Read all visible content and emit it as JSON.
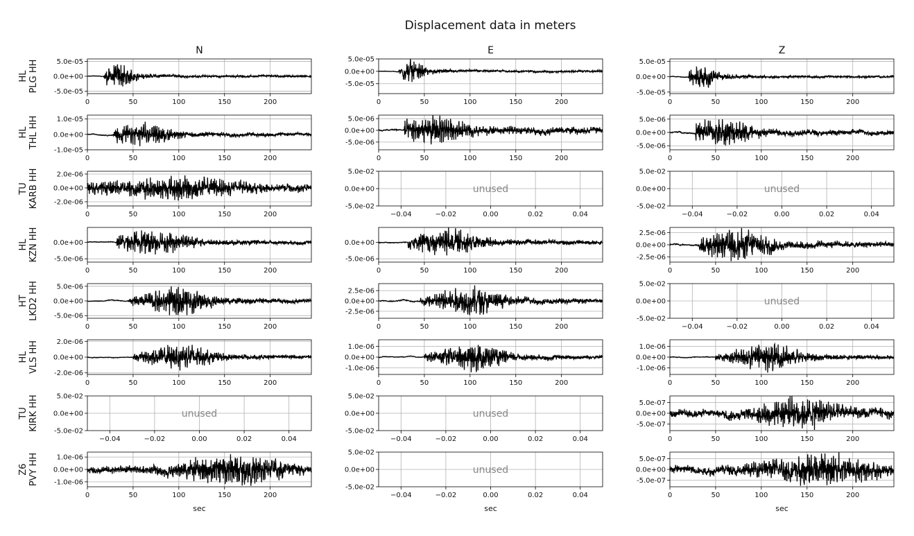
{
  "figure": {
    "title": "Displacement data in meters",
    "xlabel": "sec",
    "components": [
      "N",
      "E",
      "Z"
    ],
    "unused_label": "unused"
  },
  "chart_data": {
    "type": "line",
    "title": "Displacement data in meters",
    "grid": true,
    "x_range_traces": [
      0,
      245
    ],
    "x_ticks_traces": [
      "0",
      "50",
      "100",
      "150",
      "200"
    ],
    "x_ticks_unused": [
      "−0.04",
      "−0.02",
      "0.00",
      "0.02",
      "0.04"
    ],
    "y_ticks_unused": [
      "5.0e-02",
      "0.0e+00",
      "-5.0e-02"
    ],
    "stations": [
      {
        "network": "HL",
        "station": "PLG HH",
        "panels": [
          {
            "component": "N",
            "used": true,
            "ylim": [
              -5.8e-05,
              5.8e-05
            ],
            "yticks": [
              {
                "v": 5e-05,
                "label": "5.0e-05"
              },
              {
                "v": 0,
                "label": "0.0e+00"
              },
              {
                "v": -5e-05,
                "label": "-5.0e-05"
              }
            ],
            "onset": 18,
            "peak_t": 33,
            "peak": 4.8e-05,
            "env_width": 18,
            "level": 3.5e-06
          },
          {
            "component": "E",
            "used": true,
            "ylim": [
              -9e-05,
              5e-05
            ],
            "yticks": [
              {
                "v": 5e-05,
                "label": "5.0e-05"
              },
              {
                "v": 0,
                "label": "0.0e+00"
              },
              {
                "v": -5e-05,
                "label": "-5.0e-05"
              }
            ],
            "onset": 22,
            "peak_t": 34,
            "peak": 5e-05,
            "env_width": 16,
            "level": 4e-06
          },
          {
            "component": "Z",
            "used": true,
            "ylim": [
              -5.5e-05,
              5.8e-05
            ],
            "yticks": [
              {
                "v": 5e-05,
                "label": "5.0e-05"
              },
              {
                "v": 0,
                "label": "0.0e+00"
              },
              {
                "v": -5e-05,
                "label": "-5.0e-05"
              }
            ],
            "onset": 20,
            "peak_t": 34,
            "peak": 4.5e-05,
            "env_width": 18,
            "level": 3.5e-06
          }
        ]
      },
      {
        "network": "HL",
        "station": "THL HH",
        "panels": [
          {
            "component": "N",
            "used": true,
            "ylim": [
              -1e-05,
              1.25e-05
            ],
            "yticks": [
              {
                "v": 1e-05,
                "label": "1.0e-05"
              },
              {
                "v": 0,
                "label": "0.0e+00"
              },
              {
                "v": -1e-05,
                "label": "-1.0e-05"
              }
            ],
            "onset": 28,
            "peak_t": 55,
            "peak": 7.5e-06,
            "env_width": 40,
            "level": 9e-07
          },
          {
            "component": "E",
            "used": true,
            "ylim": [
              -8.3e-06,
              6.5e-06
            ],
            "yticks": [
              {
                "v": 5e-06,
                "label": "5.0e-06"
              },
              {
                "v": 0,
                "label": "0.0e+00"
              },
              {
                "v": -5e-06,
                "label": "-5.0e-06"
              }
            ],
            "onset": 28,
            "peak_t": 55,
            "peak": 5.8e-06,
            "env_width": 45,
            "level": 1.2e-06
          },
          {
            "component": "Z",
            "used": true,
            "ylim": [
              -6.5e-06,
              6.5e-06
            ],
            "yticks": [
              {
                "v": 5e-06,
                "label": "5.0e-06"
              },
              {
                "v": 0,
                "label": "0.0e+00"
              },
              {
                "v": -5e-06,
                "label": "-5.0e-06"
              }
            ],
            "onset": 28,
            "peak_t": 55,
            "peak": 5.5e-06,
            "env_width": 40,
            "level": 8e-07
          }
        ]
      },
      {
        "network": "TU",
        "station": "KARB HH",
        "panels": [
          {
            "component": "N",
            "used": true,
            "ylim": [
              -2.6e-06,
              2.4e-06
            ],
            "yticks": [
              {
                "v": 2e-06,
                "label": "2.0e-06"
              },
              {
                "v": 0,
                "label": "0.0e+00"
              },
              {
                "v": -2e-06,
                "label": "-2.0e-06"
              }
            ],
            "onset": 0,
            "peak_t": 90,
            "peak": 1.5e-06,
            "env_width": 80,
            "level": 4.5e-07
          },
          {
            "component": "E",
            "used": false
          },
          {
            "component": "Z",
            "used": false
          }
        ]
      },
      {
        "network": "HL",
        "station": "KZN HH",
        "panels": [
          {
            "component": "N",
            "used": true,
            "ylim": [
              -6e-06,
              4.5e-06
            ],
            "yticks": [
              {
                "v": 0,
                "label": "0.0e+00"
              },
              {
                "v": -5e-06,
                "label": "-5.0e-06"
              }
            ],
            "onset": 32,
            "peak_t": 70,
            "peak": 4.2e-06,
            "env_width": 45,
            "level": 4e-07
          },
          {
            "component": "E",
            "used": true,
            "ylim": [
              -6e-06,
              4.5e-06
            ],
            "yticks": [
              {
                "v": 0,
                "label": "0.0e+00"
              },
              {
                "v": -5e-06,
                "label": "-5.0e-06"
              }
            ],
            "onset": 32,
            "peak_t": 70,
            "peak": 4.2e-06,
            "env_width": 45,
            "level": 5e-07
          },
          {
            "component": "Z",
            "used": true,
            "ylim": [
              -3.6e-06,
              3.6e-06
            ],
            "yticks": [
              {
                "v": 2.5e-06,
                "label": "2.5e-06"
              },
              {
                "v": 0,
                "label": "0.0e+00"
              },
              {
                "v": -2.5e-06,
                "label": "-2.5e-06"
              }
            ],
            "onset": 32,
            "peak_t": 70,
            "peak": 3.2e-06,
            "env_width": 45,
            "level": 5e-07
          }
        ]
      },
      {
        "network": "HT",
        "station": "LKD2 HH",
        "panels": [
          {
            "component": "N",
            "used": true,
            "ylim": [
              -5.9e-06,
              5.9e-06
            ],
            "yticks": [
              {
                "v": 5e-06,
                "label": "5.0e-06"
              },
              {
                "v": 0,
                "label": "0.0e+00"
              },
              {
                "v": -5e-06,
                "label": "-5.0e-06"
              }
            ],
            "onset": 45,
            "peak_t": 95,
            "peak": 5.2e-06,
            "env_width": 40,
            "level": 5e-07
          },
          {
            "component": "E",
            "used": true,
            "ylim": [
              -4.2e-06,
              4.2e-06
            ],
            "yticks": [
              {
                "v": 2.5e-06,
                "label": "2.5e-06"
              },
              {
                "v": 0,
                "label": "0.0e+00"
              },
              {
                "v": -2.5e-06,
                "label": "-2.5e-06"
              }
            ],
            "onset": 45,
            "peak_t": 95,
            "peak": 3.5e-06,
            "env_width": 40,
            "level": 5e-07
          },
          {
            "component": "Z",
            "used": false
          }
        ]
      },
      {
        "network": "HL",
        "station": "VLS HH",
        "panels": [
          {
            "component": "N",
            "used": true,
            "ylim": [
              -2.2e-06,
              2.2e-06
            ],
            "yticks": [
              {
                "v": 2e-06,
                "label": "2.0e-06"
              },
              {
                "v": 0,
                "label": "0.0e+00"
              },
              {
                "v": -2e-06,
                "label": "-2.0e-06"
              }
            ],
            "onset": 50,
            "peak_t": 100,
            "peak": 1.8e-06,
            "env_width": 40,
            "level": 1.5e-07
          },
          {
            "component": "E",
            "used": true,
            "ylim": [
              -1.6e-06,
              1.6e-06
            ],
            "yticks": [
              {
                "v": 1e-06,
                "label": "1.0e-06"
              },
              {
                "v": 0,
                "label": "0.0e+00"
              },
              {
                "v": -1e-06,
                "label": "-1.0e-06"
              }
            ],
            "onset": 50,
            "peak_t": 100,
            "peak": 1.4e-06,
            "env_width": 40,
            "level": 1.2e-07
          },
          {
            "component": "Z",
            "used": true,
            "ylim": [
              -1.6e-06,
              1.6e-06
            ],
            "yticks": [
              {
                "v": 1e-06,
                "label": "1.0e-06"
              },
              {
                "v": 0,
                "label": "0.0e+00"
              },
              {
                "v": -1e-06,
                "label": "-1.0e-06"
              }
            ],
            "onset": 50,
            "peak_t": 105,
            "peak": 1.4e-06,
            "env_width": 40,
            "level": 1.2e-07
          }
        ]
      },
      {
        "network": "TU",
        "station": "KIRK HH",
        "panels": [
          {
            "component": "N",
            "used": false
          },
          {
            "component": "E",
            "used": false
          },
          {
            "component": "Z",
            "used": true,
            "ylim": [
              -8e-07,
              8e-07
            ],
            "yticks": [
              {
                "v": 5e-07,
                "label": "5.0e-07"
              },
              {
                "v": 0,
                "label": "0.0e+00"
              },
              {
                "v": -5e-07,
                "label": "-5.0e-07"
              }
            ],
            "onset": 0,
            "peak_t": 140,
            "peak": 7e-07,
            "env_width": 50,
            "level": 1.8e-07
          }
        ]
      },
      {
        "network": "Z6",
        "station": "PVY HH",
        "panels": [
          {
            "component": "N",
            "used": true,
            "ylim": [
              -1.4e-06,
              1.4e-06
            ],
            "yticks": [
              {
                "v": 1e-06,
                "label": "1.0e-06"
              },
              {
                "v": 0,
                "label": "0.0e+00"
              },
              {
                "v": -1e-06,
                "label": "-1.0e-06"
              }
            ],
            "onset": 0,
            "peak_t": 160,
            "peak": 1.2e-06,
            "env_width": 60,
            "level": 3e-07
          },
          {
            "component": "E",
            "used": false
          },
          {
            "component": "Z",
            "used": true,
            "ylim": [
              -8e-07,
              8e-07
            ],
            "yticks": [
              {
                "v": 5e-07,
                "label": "5.0e-07"
              },
              {
                "v": 0,
                "label": "0.0e+00"
              },
              {
                "v": -5e-07,
                "label": "-5.0e-07"
              }
            ],
            "onset": 0,
            "peak_t": 160,
            "peak": 7e-07,
            "env_width": 60,
            "level": 2e-07
          }
        ]
      }
    ]
  }
}
